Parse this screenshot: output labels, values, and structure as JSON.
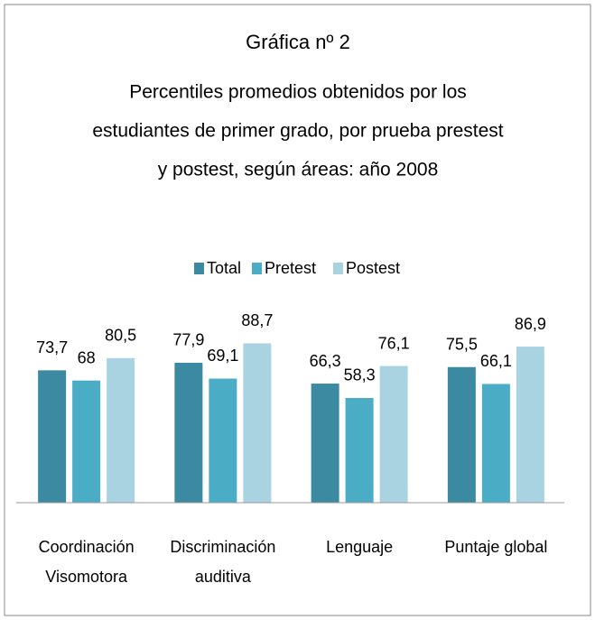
{
  "chart_data": {
    "type": "bar",
    "title": "Gráfica nº 2",
    "subtitle": [
      "Percentiles promedios  obtenidos por los",
      "estudiantes de primer grado, por prueba prestest",
      "y postest, según áreas: año 2008"
    ],
    "categories": [
      [
        "Coordinación",
        "Visomotora"
      ],
      [
        "Discriminación",
        "auditiva"
      ],
      [
        "Lenguaje"
      ],
      [
        "Puntaje global"
      ]
    ],
    "series": [
      {
        "name": "Total",
        "color": "#3b8aa2",
        "values": [
          73.7,
          77.9,
          66.3,
          75.5
        ],
        "value_labels": [
          "73,7",
          "77,9",
          "66,3",
          "75,5"
        ]
      },
      {
        "name": "Pretest",
        "color": "#4bacc6",
        "values": [
          68,
          69.1,
          58.3,
          66.1
        ],
        "value_labels": [
          "68",
          "69,1",
          "58,3",
          "66,1"
        ]
      },
      {
        "name": "Postest",
        "color": "#a9d3e0",
        "values": [
          80.5,
          88.7,
          76.1,
          86.9
        ],
        "value_labels": [
          "80,5",
          "88,7",
          "76,1",
          "86,9"
        ]
      }
    ],
    "ylim": [
      0,
      100
    ],
    "legend": "top"
  }
}
